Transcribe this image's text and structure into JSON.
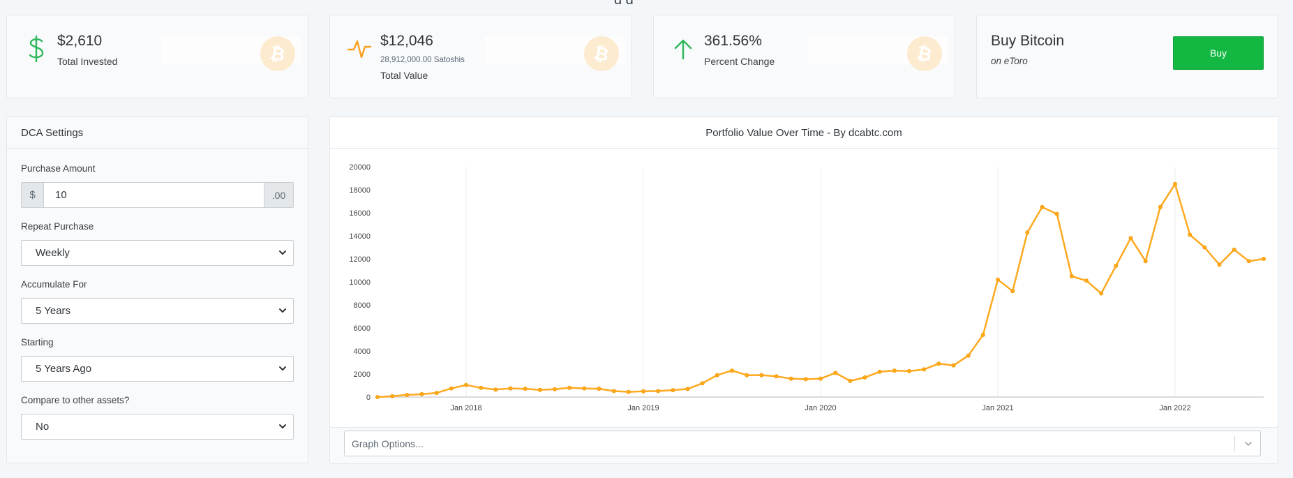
{
  "stats": [
    {
      "value": "$2,610",
      "label": "Total Invested",
      "icon": "dollar-icon"
    },
    {
      "value": "$12,046",
      "detail": "28,912,000.00 Satoshis",
      "label": "Total Value",
      "icon": "pulse-icon"
    },
    {
      "value": "361.56%",
      "label": "Percent Change",
      "icon": "arrow-up-icon"
    }
  ],
  "buy": {
    "title": "Buy Bitcoin",
    "subtitle": "on eToro",
    "button_label": "Buy"
  },
  "dca": {
    "title": "DCA Settings",
    "purchase_amount": {
      "label": "Purchase Amount",
      "prefix": "$",
      "value": "10",
      "suffix": ".00"
    },
    "repeat": {
      "label": "Repeat Purchase",
      "selected": "Weekly"
    },
    "accumulate": {
      "label": "Accumulate For",
      "selected": "5 Years"
    },
    "starting": {
      "label": "Starting",
      "selected": "5 Years Ago"
    },
    "compare": {
      "label": "Compare to other assets?",
      "selected": "No"
    }
  },
  "chart_panel": {
    "title": "Portfolio Value Over Time - By dcabtc.com",
    "options_placeholder": "Graph Options..."
  },
  "colors": {
    "accent_green": "#12b841",
    "line": "#ffa91f",
    "icon_green": "#2eb85c",
    "icon_orange": "#f9a11b",
    "btc_bg": "#fdebd0"
  },
  "chart_data": {
    "type": "line",
    "title": "Portfolio Value Over Time - By dcabtc.com",
    "xlabel": "",
    "ylabel": "",
    "ylim": [
      0,
      20000
    ],
    "yticks": [
      0,
      2000,
      4000,
      6000,
      8000,
      10000,
      12000,
      14000,
      16000,
      18000,
      20000
    ],
    "xtick_labels": [
      "Jan 2018",
      "Jan 2019",
      "Jan 2020",
      "Jan 2021",
      "Jan 2022"
    ],
    "xtick_dates": [
      "2018-01",
      "2019-01",
      "2020-01",
      "2021-01",
      "2022-01"
    ],
    "grid": {
      "x": true,
      "y": false
    },
    "series": [
      {
        "x": [
          "2017-07",
          "2017-08",
          "2017-09",
          "2017-10",
          "2017-11",
          "2017-12",
          "2018-01",
          "2018-02",
          "2018-03",
          "2018-04",
          "2018-05",
          "2018-06",
          "2018-07",
          "2018-08",
          "2018-09",
          "2018-10",
          "2018-11",
          "2018-12",
          "2019-01",
          "2019-02",
          "2019-03",
          "2019-04",
          "2019-05",
          "2019-06",
          "2019-07",
          "2019-08",
          "2019-09",
          "2019-10",
          "2019-11",
          "2019-12",
          "2020-01",
          "2020-02",
          "2020-03",
          "2020-04",
          "2020-05",
          "2020-06",
          "2020-07",
          "2020-08",
          "2020-09",
          "2020-10",
          "2020-11",
          "2020-12",
          "2021-01",
          "2021-02",
          "2021-03",
          "2021-04",
          "2021-05",
          "2021-06",
          "2021-07",
          "2021-08",
          "2021-09",
          "2021-10",
          "2021-11",
          "2021-12",
          "2022-01",
          "2022-02",
          "2022-03",
          "2022-04",
          "2022-05",
          "2022-06",
          "2022-07"
        ],
        "values": [
          0,
          80,
          180,
          250,
          360,
          750,
          1050,
          800,
          650,
          750,
          720,
          620,
          680,
          800,
          750,
          720,
          520,
          450,
          500,
          520,
          600,
          700,
          1200,
          1900,
          2300,
          1900,
          1900,
          1800,
          1600,
          1550,
          1600,
          2100,
          1400,
          1700,
          2200,
          2300,
          2250,
          2400,
          2900,
          2750,
          3600,
          5400,
          10200,
          9200,
          14300,
          16500,
          15900,
          10500,
          10100,
          9000,
          11400,
          13800,
          11800,
          16500,
          18500,
          14100,
          13000,
          11500,
          12800,
          11800,
          12000
        ]
      }
    ]
  }
}
